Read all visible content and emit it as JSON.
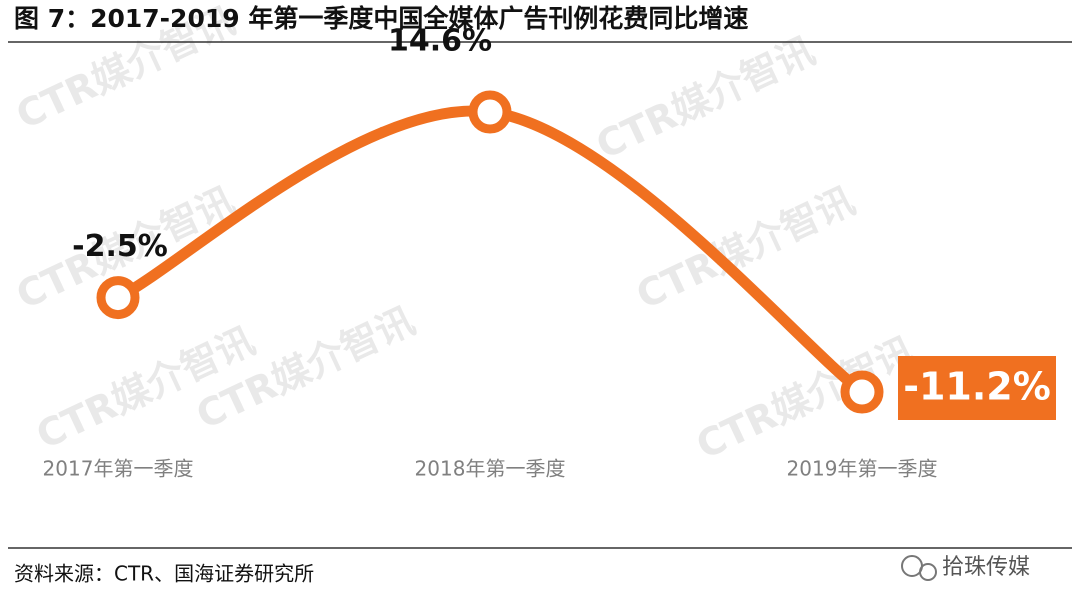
{
  "chart_data": {
    "type": "line",
    "title": "图 7：2017-2019 年第一季度中国全媒体广告刊例花费同比增速",
    "categories": [
      "2017年第一季度",
      "2018年第一季度",
      "2019年第一季度"
    ],
    "values": [
      -2.5,
      14.6,
      -11.2
    ],
    "value_labels": [
      "-2.5%",
      "14.6%",
      "-11.2%"
    ],
    "color": "#f07020",
    "source": "资料来源：CTR、国海证券研究所",
    "watermark": "CTR媒介智讯",
    "brand": "拾珠传媒"
  }
}
